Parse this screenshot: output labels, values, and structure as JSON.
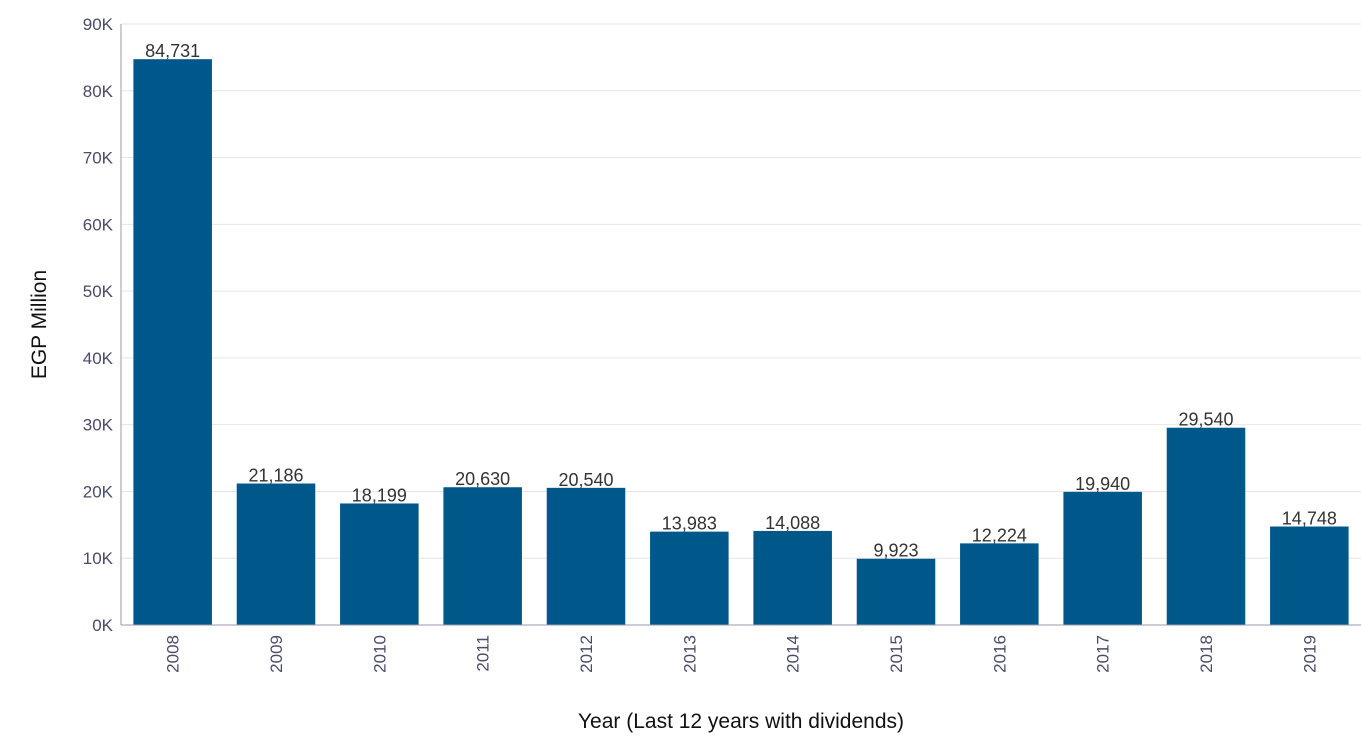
{
  "chart_data": {
    "type": "bar",
    "title": "",
    "xlabel": "Year (Last 12 years with dividends)",
    "ylabel": "EGP Million",
    "categories": [
      "2008",
      "2009",
      "2010",
      "2011",
      "2012",
      "2013",
      "2014",
      "2015",
      "2016",
      "2017",
      "2018",
      "2019"
    ],
    "values": [
      84731,
      21186,
      18199,
      20630,
      20540,
      13983,
      14088,
      9923,
      12224,
      19940,
      29540,
      14748
    ],
    "value_labels": [
      "84,731",
      "21,186",
      "18,199",
      "20,630",
      "20,540",
      "13,983",
      "14,088",
      "9,923",
      "12,224",
      "19,940",
      "29,540",
      "14,748"
    ],
    "ylim": [
      0,
      90000
    ],
    "yticks": [
      0,
      10000,
      20000,
      30000,
      40000,
      50000,
      60000,
      70000,
      80000,
      90000
    ],
    "ytick_labels": [
      "0K",
      "10K",
      "20K",
      "30K",
      "40K",
      "50K",
      "60K",
      "70K",
      "80K",
      "90K"
    ],
    "grid": true,
    "legend": "none",
    "colors": {
      "bar": "#00578a"
    }
  }
}
